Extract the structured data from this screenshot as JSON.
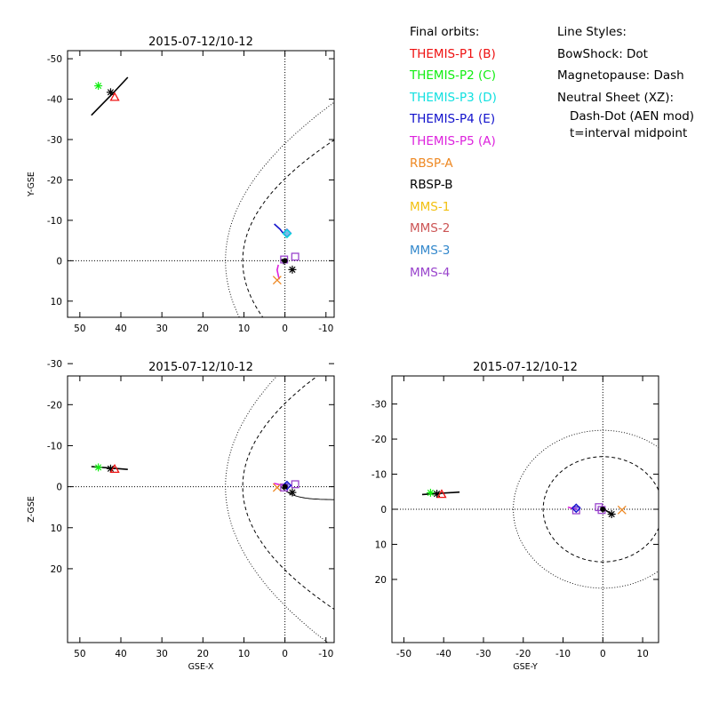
{
  "figure": {
    "legend_title": "Final orbits:",
    "styles_title": "Line Styles:",
    "style_lines": [
      "BowShock: Dot",
      "Magnetopause: Dash",
      "Neutral Sheet (XZ):",
      "Dash-Dot (AEN mod)",
      "t=interval midpoint"
    ]
  },
  "spacecraft": [
    {
      "label": "THEMIS-P1 (B)",
      "color": "#ee1111"
    },
    {
      "label": "THEMIS-P2 (C)",
      "color": "#11ee11"
    },
    {
      "label": "THEMIS-P3 (D)",
      "color": "#11e0e0"
    },
    {
      "label": "THEMIS-P4 (E)",
      "color": "#1111cc"
    },
    {
      "label": "THEMIS-P5 (A)",
      "color": "#dd22dd"
    },
    {
      "label": "RBSP-A",
      "color": "#ee8822"
    },
    {
      "label": "RBSP-B",
      "color": "#000000"
    },
    {
      "label": "MMS-1",
      "color": "#f2c010"
    },
    {
      "label": "MMS-2",
      "color": "#cc5555"
    },
    {
      "label": "MMS-3",
      "color": "#3388cc"
    },
    {
      "label": "MMS-4",
      "color": "#9944cc"
    }
  ],
  "chart_data": [
    {
      "type": "scatter",
      "title": "2015-07-12/10-12",
      "xlabel": "",
      "ylabel": "Y-GSE",
      "xlim": [
        53,
        -12
      ],
      "ylim": [
        14,
        -52
      ],
      "xticks": [
        50,
        40,
        30,
        20,
        10,
        0,
        -10
      ],
      "yticks": [
        -50,
        -40,
        -30,
        -20,
        -10,
        0,
        10
      ],
      "boundaries": [
        "bowshock",
        "magnetopause"
      ],
      "neutral_sheet": false,
      "points": [
        {
          "sc": 1,
          "marker": "asterisk",
          "x": 45.5,
          "y": -43.3
        },
        {
          "sc": 6,
          "marker": "asterisk",
          "x": 42.5,
          "y": -41.7
        },
        {
          "sc": 0,
          "marker": "triangle",
          "x": 41.5,
          "y": -40.5
        },
        {
          "sc": 3,
          "marker": "diamond",
          "x": -0.5,
          "y": -6.8
        },
        {
          "sc": 2,
          "marker": "diamond",
          "x": -0.5,
          "y": -6.7
        },
        {
          "sc": 10,
          "marker": "square",
          "x": -2.5,
          "y": -1.0
        },
        {
          "sc": 6,
          "marker": "asterisk",
          "x": -1.8,
          "y": 2.2
        },
        {
          "sc": 5,
          "marker": "x",
          "x": 1.9,
          "y": 4.8
        },
        {
          "sc": 10,
          "marker": "square",
          "x": 0.2,
          "y": -0.3
        }
      ],
      "tracks": [
        {
          "sc": 6,
          "points": [
            [
              38.3,
              -45.4
            ],
            [
              42.0,
              -41.4
            ],
            [
              47.2,
              -36.0
            ]
          ]
        },
        {
          "sc": 3,
          "points": [
            [
              0.2,
              -6.5
            ],
            [
              1.2,
              -7.8
            ],
            [
              2.6,
              -9.1
            ]
          ]
        },
        {
          "sc": 4,
          "points": [
            [
              1.6,
              1.0
            ],
            [
              1.9,
              2.3
            ],
            [
              1.6,
              3.7
            ],
            [
              1.4,
              4.6
            ]
          ]
        },
        {
          "sc": 6,
          "points": [
            [
              0.8,
              -0.4
            ],
            [
              0.3,
              0.7
            ],
            [
              -0.7,
              -0.6
            ]
          ]
        }
      ]
    },
    {
      "type": "scatter",
      "title": "2015-07-12/10-12",
      "xlabel": "GSE-X",
      "ylabel": "Z-GSE",
      "xlim": [
        53,
        -12
      ],
      "ylim": [
        38,
        -27
      ],
      "xticks": [
        50,
        40,
        30,
        20,
        10,
        0,
        -10
      ],
      "yticks": [
        -30,
        -20,
        -10,
        0,
        10,
        20
      ],
      "boundaries": [
        "bowshock",
        "magnetopause"
      ],
      "neutral_sheet": true,
      "points": [
        {
          "sc": 1,
          "marker": "asterisk",
          "x": 45.5,
          "y": -4.7
        },
        {
          "sc": 6,
          "marker": "asterisk",
          "x": 42.5,
          "y": -4.4
        },
        {
          "sc": 0,
          "marker": "triangle",
          "x": 41.5,
          "y": -4.3
        },
        {
          "sc": 6,
          "marker": "asterisk",
          "x": -1.8,
          "y": 1.4
        },
        {
          "sc": 5,
          "marker": "x",
          "x": 1.9,
          "y": 0.2
        },
        {
          "sc": 10,
          "marker": "square",
          "x": 0.2,
          "y": 0.2
        },
        {
          "sc": 10,
          "marker": "square",
          "x": -2.5,
          "y": -0.6
        },
        {
          "sc": 3,
          "marker": "diamond",
          "x": -0.5,
          "y": -0.3
        }
      ],
      "tracks": [
        {
          "sc": 6,
          "points": [
            [
              38.3,
              -4.2
            ],
            [
              42.0,
              -4.5
            ],
            [
              47.2,
              -4.9
            ]
          ]
        },
        {
          "sc": 4,
          "points": [
            [
              2.7,
              -0.8
            ],
            [
              1.8,
              -0.6
            ],
            [
              0.5,
              -0.3
            ]
          ]
        }
      ]
    },
    {
      "type": "scatter",
      "title": "2015-07-12/10-12",
      "xlabel": "GSE-Y",
      "ylabel": "",
      "xlim": [
        -53,
        14
      ],
      "ylim": [
        38,
        -38
      ],
      "xticks": [
        -50,
        -40,
        -30,
        -20,
        -10,
        0,
        10
      ],
      "yticks": [
        -30,
        -20,
        -10,
        0,
        10,
        20
      ],
      "boundaries": [
        "bowshock",
        "magnetopause"
      ],
      "neutral_sheet": false,
      "points": [
        {
          "sc": 1,
          "marker": "asterisk",
          "x": -43.3,
          "y": -4.7
        },
        {
          "sc": 6,
          "marker": "asterisk",
          "x": -41.7,
          "y": -4.4
        },
        {
          "sc": 0,
          "marker": "triangle",
          "x": -40.5,
          "y": -4.3
        },
        {
          "sc": 10,
          "marker": "square",
          "x": -6.7,
          "y": 0.3
        },
        {
          "sc": 3,
          "marker": "diamond",
          "x": -6.7,
          "y": -0.3
        },
        {
          "sc": 10,
          "marker": "square",
          "x": -1.0,
          "y": -0.6
        },
        {
          "sc": 10,
          "marker": "square",
          "x": -0.3,
          "y": 0.2
        },
        {
          "sc": 6,
          "marker": "asterisk",
          "x": 2.2,
          "y": 1.4
        },
        {
          "sc": 5,
          "marker": "x",
          "x": 4.8,
          "y": 0.2
        }
      ],
      "tracks": [
        {
          "sc": 6,
          "points": [
            [
              -45.4,
              -4.2
            ],
            [
              -41.4,
              -4.5
            ],
            [
              -36.0,
              -4.9
            ]
          ]
        },
        {
          "sc": 4,
          "points": [
            [
              -6.5,
              0.0
            ],
            [
              -7.8,
              -0.3
            ],
            [
              -8.8,
              -0.6
            ]
          ]
        },
        {
          "sc": 6,
          "points": [
            [
              -0.6,
              -0.6
            ],
            [
              0.6,
              0.2
            ],
            [
              2.2,
              1.4
            ]
          ]
        }
      ]
    }
  ]
}
